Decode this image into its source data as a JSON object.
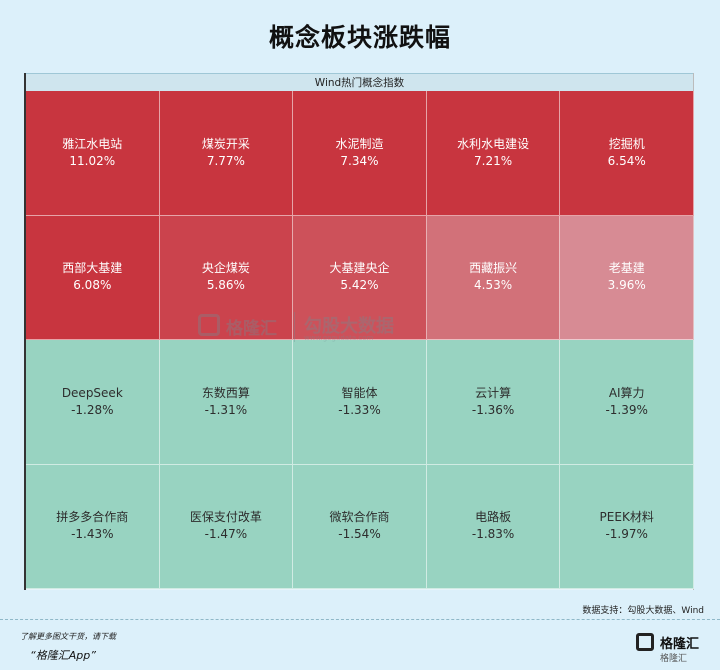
{
  "title": "概念板块涨跌幅",
  "chart_data": {
    "type": "heatmap",
    "header": "Wind热门概念指数",
    "unit": "%",
    "cells": [
      {
        "name": "雅江水电站",
        "label": "11.02%",
        "value": 11.02
      },
      {
        "name": "煤炭开采",
        "label": "7.77%",
        "value": 7.77
      },
      {
        "name": "水泥制造",
        "label": "7.34%",
        "value": 7.34
      },
      {
        "name": "水利水电建设",
        "label": "7.21%",
        "value": 7.21
      },
      {
        "name": "挖掘机",
        "label": "6.54%",
        "value": 6.54
      },
      {
        "name": "西部大基建",
        "label": "6.08%",
        "value": 6.08
      },
      {
        "name": "央企煤炭",
        "label": "5.86%",
        "value": 5.86
      },
      {
        "name": "大基建央企",
        "label": "5.42%",
        "value": 5.42
      },
      {
        "name": "西藏振兴",
        "label": "4.53%",
        "value": 4.53
      },
      {
        "name": "老基建",
        "label": "3.96%",
        "value": 3.96
      },
      {
        "name": "DeepSeek",
        "label": "-1.28%",
        "value": -1.28
      },
      {
        "name": "东数西算",
        "label": "-1.31%",
        "value": -1.31
      },
      {
        "name": "智能体",
        "label": "-1.33%",
        "value": -1.33
      },
      {
        "name": "云计算",
        "label": "-1.36%",
        "value": -1.36
      },
      {
        "name": "AI算力",
        "label": "-1.39%",
        "value": -1.39
      },
      {
        "name": "拼多多合作商",
        "label": "-1.43%",
        "value": -1.43
      },
      {
        "name": "医保支付改革",
        "label": "-1.47%",
        "value": -1.47
      },
      {
        "name": "微软合作商",
        "label": "-1.54%",
        "value": -1.54
      },
      {
        "name": "电路板",
        "label": "-1.83%",
        "value": -1.83
      },
      {
        "name": "PEEK材料",
        "label": "-1.97%",
        "value": -1.97
      }
    ],
    "colors": {
      "up": "#c8353f",
      "down": "#98d3c1"
    }
  },
  "watermark": {
    "brand": "格隆汇",
    "right": "勾股大数据",
    "url": "www.gogudata.com"
  },
  "source": "数据支持：勾股大数据、Wind",
  "footer": {
    "note": "了解更多图文干货，请下载",
    "app": "“格隆汇App”"
  },
  "brand": {
    "name": "格隆汇",
    "sub": "格隆汇"
  }
}
